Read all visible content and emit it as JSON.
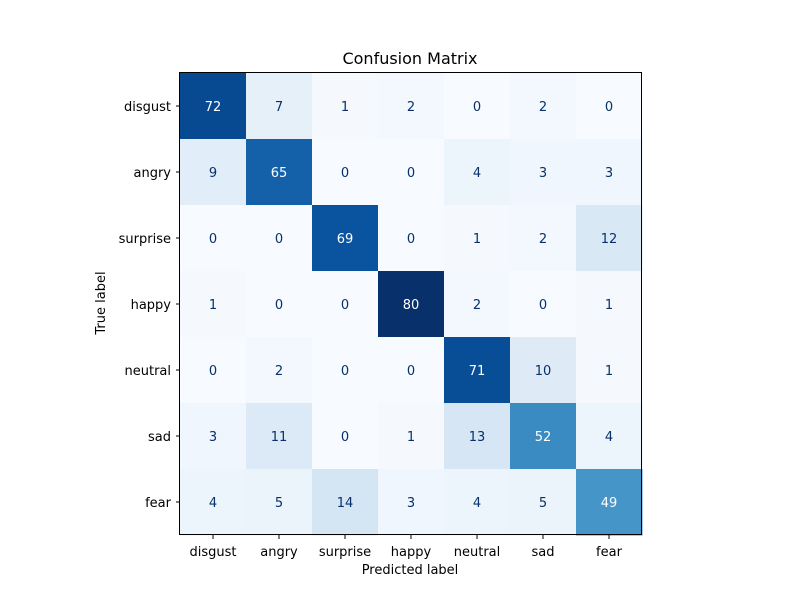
{
  "chart_data": {
    "type": "heatmap",
    "title": "Confusion Matrix",
    "xlabel": "Predicted label",
    "ylabel": "True label",
    "x_categories": [
      "disgust",
      "angry",
      "surprise",
      "happy",
      "neutral",
      "sad",
      "fear"
    ],
    "y_categories": [
      "disgust",
      "angry",
      "surprise",
      "happy",
      "neutral",
      "sad",
      "fear"
    ],
    "values": [
      [
        72,
        7,
        1,
        2,
        0,
        2,
        0
      ],
      [
        9,
        65,
        0,
        0,
        4,
        3,
        3
      ],
      [
        0,
        0,
        69,
        0,
        1,
        2,
        12
      ],
      [
        1,
        0,
        0,
        80,
        2,
        0,
        1
      ],
      [
        0,
        2,
        0,
        0,
        71,
        10,
        1
      ],
      [
        3,
        11,
        0,
        1,
        13,
        52,
        4
      ],
      [
        4,
        5,
        14,
        3,
        4,
        5,
        49
      ]
    ],
    "colormap": "Blues",
    "value_range": [
      0,
      80
    ],
    "colorbar": false,
    "grid": false
  }
}
